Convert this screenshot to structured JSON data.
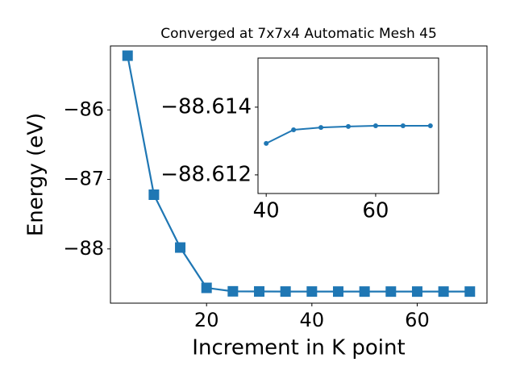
{
  "chart_data": [
    {
      "type": "line",
      "title": "Converged at 7x7x4 Automatic Mesh 45",
      "x_label": "Increment in K point",
      "y_label": "Energy (eV)",
      "x": [
        5,
        10,
        15,
        20,
        25,
        30,
        35,
        40,
        45,
        50,
        55,
        60,
        65,
        70
      ],
      "values": [
        -85.22,
        -87.22,
        -87.98,
        -88.56,
        -88.61,
        -88.612,
        -88.613,
        -88.61293,
        -88.61333,
        -88.6134,
        -88.61343,
        -88.61345,
        -88.61345,
        -88.61345
      ],
      "color": "#1f77b4",
      "marker": "square",
      "xlim": [
        1.75,
        73.25
      ],
      "xticks": [
        20,
        40,
        60
      ],
      "ylim": [
        -88.78,
        -85.08
      ],
      "yticks": [
        {
          "value": -88,
          "label": "−88"
        },
        {
          "value": -87,
          "label": "−87"
        },
        {
          "value": -86,
          "label": "−86"
        }
      ]
    },
    {
      "type": "line",
      "x": [
        40,
        45,
        50,
        55,
        60,
        65,
        70
      ],
      "values": [
        -88.61293,
        -88.61333,
        -88.6134,
        -88.61343,
        -88.61345,
        -88.61345,
        -88.61345
      ],
      "color": "#1f77b4",
      "marker": "circle",
      "xlim": [
        38.5,
        71.5
      ],
      "xticks": [
        40,
        60
      ],
      "ylim": [
        -88.61145,
        -88.61545
      ],
      "yticks": [
        {
          "value": -88.612,
          "label": "−88.612"
        },
        {
          "value": -88.614,
          "label": "−88.614"
        }
      ]
    }
  ]
}
